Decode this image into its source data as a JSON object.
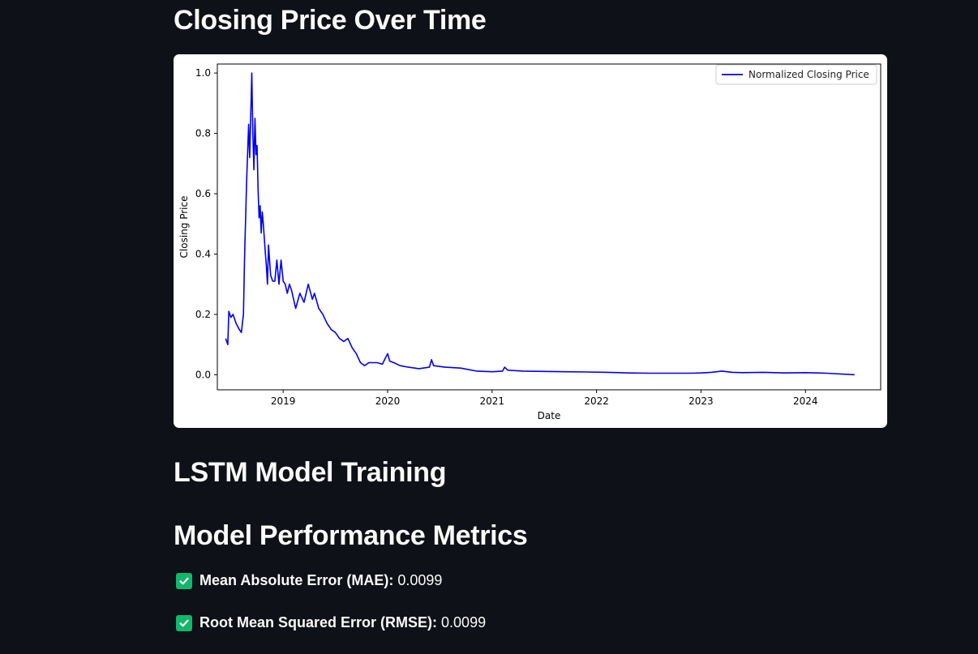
{
  "sections": {
    "closing_title": "Closing Price Over Time",
    "lstm_title": "LSTM Model Training",
    "metrics_title": "Model Performance Metrics"
  },
  "metrics": [
    {
      "label": "Mean Absolute Error (MAE):",
      "value": "0.0099",
      "icon": "check-icon"
    },
    {
      "label": "Root Mean Squared Error (RMSE):",
      "value": "0.0099",
      "icon": "check-icon"
    }
  ],
  "colors": {
    "background": "#0e1117",
    "line": "#0000ee",
    "check": "#12b76a"
  },
  "chart_data": {
    "type": "line",
    "title": "",
    "xlabel": "Date",
    "ylabel": "Closing Price",
    "xlim": [
      2018.37,
      2024.72
    ],
    "ylim": [
      -0.05,
      1.03
    ],
    "xticks": [
      "2019",
      "2020",
      "2021",
      "2022",
      "2023",
      "2024"
    ],
    "xtick_values": [
      2019,
      2020,
      2021,
      2022,
      2023,
      2024
    ],
    "yticks": [
      "0.0",
      "0.2",
      "0.4",
      "0.6",
      "0.8",
      "1.0"
    ],
    "ytick_values": [
      0.0,
      0.2,
      0.4,
      0.6,
      0.8,
      1.0
    ],
    "grid": false,
    "legend_position": "top-right",
    "series": [
      {
        "name": "Normalized Closing Price",
        "x": [
          2018.45,
          2018.47,
          2018.48,
          2018.5,
          2018.52,
          2018.55,
          2018.58,
          2018.6,
          2018.62,
          2018.63,
          2018.65,
          2018.67,
          2018.68,
          2018.7,
          2018.71,
          2018.72,
          2018.73,
          2018.74,
          2018.75,
          2018.76,
          2018.77,
          2018.78,
          2018.79,
          2018.8,
          2018.81,
          2018.82,
          2018.83,
          2018.84,
          2018.85,
          2018.86,
          2018.88,
          2018.9,
          2018.92,
          2018.94,
          2018.96,
          2018.98,
          2019.0,
          2019.02,
          2019.04,
          2019.06,
          2019.08,
          2019.12,
          2019.16,
          2019.2,
          2019.24,
          2019.28,
          2019.3,
          2019.34,
          2019.38,
          2019.42,
          2019.46,
          2019.5,
          2019.54,
          2019.58,
          2019.62,
          2019.66,
          2019.7,
          2019.74,
          2019.78,
          2019.82,
          2019.86,
          2019.9,
          2019.95,
          2020.0,
          2020.02,
          2020.06,
          2020.12,
          2020.2,
          2020.3,
          2020.4,
          2020.42,
          2020.44,
          2020.55,
          2020.7,
          2020.85,
          2021.0,
          2021.1,
          2021.12,
          2021.15,
          2021.3,
          2021.5,
          2021.7,
          2021.9,
          2022.1,
          2022.3,
          2022.5,
          2022.7,
          2022.9,
          2023.0,
          2023.1,
          2023.2,
          2023.3,
          2023.4,
          2023.6,
          2023.8,
          2024.0,
          2024.2,
          2024.47
        ],
        "y": [
          0.12,
          0.1,
          0.21,
          0.19,
          0.2,
          0.17,
          0.15,
          0.14,
          0.2,
          0.38,
          0.64,
          0.83,
          0.72,
          1.0,
          0.8,
          0.68,
          0.85,
          0.73,
          0.76,
          0.62,
          0.52,
          0.56,
          0.47,
          0.54,
          0.5,
          0.45,
          0.4,
          0.36,
          0.3,
          0.43,
          0.33,
          0.31,
          0.31,
          0.38,
          0.3,
          0.38,
          0.31,
          0.3,
          0.27,
          0.3,
          0.28,
          0.22,
          0.27,
          0.24,
          0.3,
          0.25,
          0.27,
          0.22,
          0.2,
          0.17,
          0.15,
          0.14,
          0.12,
          0.11,
          0.12,
          0.09,
          0.07,
          0.04,
          0.03,
          0.04,
          0.04,
          0.04,
          0.035,
          0.07,
          0.045,
          0.04,
          0.03,
          0.025,
          0.02,
          0.025,
          0.05,
          0.03,
          0.025,
          0.022,
          0.012,
          0.01,
          0.012,
          0.025,
          0.015,
          0.012,
          0.011,
          0.01,
          0.009,
          0.008,
          0.006,
          0.005,
          0.005,
          0.005,
          0.006,
          0.008,
          0.012,
          0.008,
          0.007,
          0.008,
          0.006,
          0.007,
          0.005,
          0.0
        ]
      }
    ]
  }
}
